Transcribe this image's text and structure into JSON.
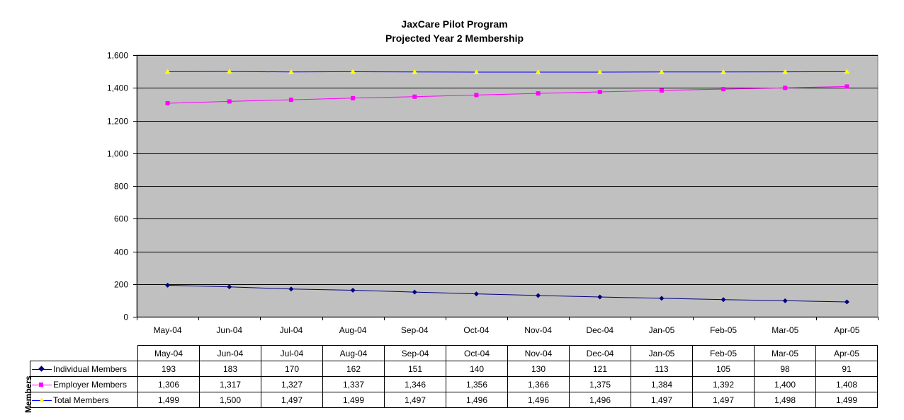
{
  "chart_data": {
    "type": "line",
    "title": "JaxCare Pilot Program",
    "subtitle": "Projected Year 2 Membership",
    "ylabel": "Members",
    "xlabel": "",
    "ylim": [
      0,
      1600
    ],
    "y_ticks": [
      "0",
      "200",
      "400",
      "600",
      "800",
      "1,000",
      "1,200",
      "1,400",
      "1,600"
    ],
    "y_tick_values": [
      0,
      200,
      400,
      600,
      800,
      1000,
      1200,
      1400,
      1600
    ],
    "grid": true,
    "legend": "data-table-below",
    "categories": [
      "May-04",
      "Jun-04",
      "Jul-04",
      "Aug-04",
      "Sep-04",
      "Oct-04",
      "Nov-04",
      "Dec-04",
      "Jan-05",
      "Feb-05",
      "Mar-05",
      "Apr-05"
    ],
    "series": [
      {
        "name": "Individual Members",
        "marker": "diamond",
        "color": "#000080",
        "marker_color": "#000080",
        "values": [
          193,
          183,
          170,
          162,
          151,
          140,
          130,
          121,
          113,
          105,
          98,
          91
        ],
        "labels": [
          "193",
          "183",
          "170",
          "162",
          "151",
          "140",
          "130",
          "121",
          "113",
          "105",
          "98",
          "91"
        ]
      },
      {
        "name": "Employer Members",
        "marker": "square",
        "color": "#ff00ff",
        "marker_color": "#ff00ff",
        "values": [
          1306,
          1317,
          1327,
          1337,
          1346,
          1356,
          1366,
          1375,
          1384,
          1392,
          1400,
          1408
        ],
        "labels": [
          "1,306",
          "1,317",
          "1,327",
          "1,337",
          "1,346",
          "1,356",
          "1,366",
          "1,375",
          "1,384",
          "1,392",
          "1,400",
          "1,408"
        ]
      },
      {
        "name": "Total Members",
        "marker": "triangle",
        "color": "#0000ff",
        "marker_color": "#ffff00",
        "values": [
          1499,
          1500,
          1497,
          1499,
          1497,
          1496,
          1496,
          1496,
          1497,
          1497,
          1498,
          1499
        ],
        "labels": [
          "1,499",
          "1,500",
          "1,497",
          "1,499",
          "1,497",
          "1,496",
          "1,496",
          "1,496",
          "1,497",
          "1,497",
          "1,498",
          "1,499"
        ]
      }
    ],
    "plot_background": "#c0c0c0"
  }
}
